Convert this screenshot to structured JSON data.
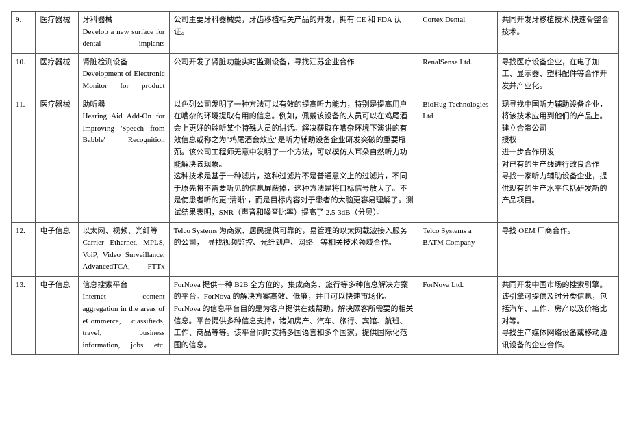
{
  "rows": [
    {
      "num": "9.",
      "category": "医疗器械",
      "title_cn": "牙科器械",
      "title_en": "Develop a new surface for dental implants",
      "desc": "公司主要牙科器械类，牙齿移植相关产品的开发，拥有 CE 和 FDA 认证。",
      "company": "Cortex Dental",
      "notes": [
        "共同开发牙移植技术,快速骨整合技术。"
      ]
    },
    {
      "num": "10.",
      "category": "医疗器械",
      "title_cn": "肾脏检测设备",
      "title_en": "Development of Electronic Monitor for product",
      "desc": "公司开发了肾脏功能实时监测设备，寻找江苏企业合作",
      "company": "RenalSense Ltd.",
      "notes": [
        "寻找医疗设备企业，在电子加工、显示器、塑料配件等合作开发并产业化。"
      ]
    },
    {
      "num": "11.",
      "category": "医疗器械",
      "title_cn": "助听器",
      "title_en": "Hearing Aid Add-On for Improving 'Speech from Babble' Recognition",
      "desc": "以色列公司发明了一种方法可以有效的提高听力能力，特别是提高用户在嘈杂的环境提取有用的信息。例如，佩戴该设备的人员可以在鸡尾酒会上更好的聆听某个特殊人员的讲话。解决获取在嘈杂环境下演讲的有效信息或称之为\"鸡尾酒会效应\"是听力辅助设备企业研发突破的重要瓶颈。该公司工程师无意中发明了一个方法，可以模仿人耳朵自然听力功能解决该现象。\n这种技术是基于一种滤片，这种过滤片不是普通意义上的过滤片，不同于原先将不需要听见的信息屏蔽掉，这种方法是将目标信号放大了。不是使患者听的更\"清晰\"，而是目标内容对于患者的大脑更容易理解了。测试结果表明，SNR（声音和噪音比率）提高了 2.5-3dB（分贝）。",
      "company": "BioHug Technologies Ltd",
      "notes": [
        "现寻找中国听力辅助设备企业，将该技术应用到他们的产品上。",
        "建立合资公司",
        "授权",
        "进一步合作研发",
        "对已有的生产线进行改良合作",
        "寻找一家听力辅助设备企业，提供现有的生产水平包括研发新的产品项目。"
      ]
    },
    {
      "num": "12.",
      "category": "电子信息",
      "title_cn": "以太网、视频、光纤等",
      "title_en": "Carrier Ethernet, MPLS, VoiP, Video Surveillance, AdvancedTCA, FTTx",
      "desc": "Telco Systems 为商家、居民提供可靠的，易管理的以太网载波接入服务的公司，　寻找视频监控、光纤到户、网络　等相关技术领域合作。",
      "company": "Telco Systems a BATM Company",
      "notes": [
        "寻找 OEM 厂商合作。"
      ]
    },
    {
      "num": "13.",
      "category": "电子信息",
      "title_cn": "信息搜索平台",
      "title_en": "Internet content aggregation in the areas of eCommerce, classifieds, travel, business information, jobs etc.",
      "desc": "ForNova 提供一种 B2B 全方位的，集成商务、旅行等多种信息解决方案的平台。ForNova 的解决方案高效、低廉，并且可以快速市场化。ForNova 的信息平台目的是为客户提供在线帮助，解决顾客所需要的相关信息。平台提供多种信息支持，诸如房产、汽车、旅行、宾馆、航班、工作、商品等等。该平台同时支持多国语言和多个国家，提供国际化范围的信息。",
      "company": "ForNova Ltd.",
      "notes": [
        "共同开发中国市场的搜索引擎。该引擎可提供及时分类信息，包括汽车、工作、房产以及价格比对等。",
        "寻找生产媒体网络设备或移动通讯设备的企业合作。"
      ]
    }
  ]
}
